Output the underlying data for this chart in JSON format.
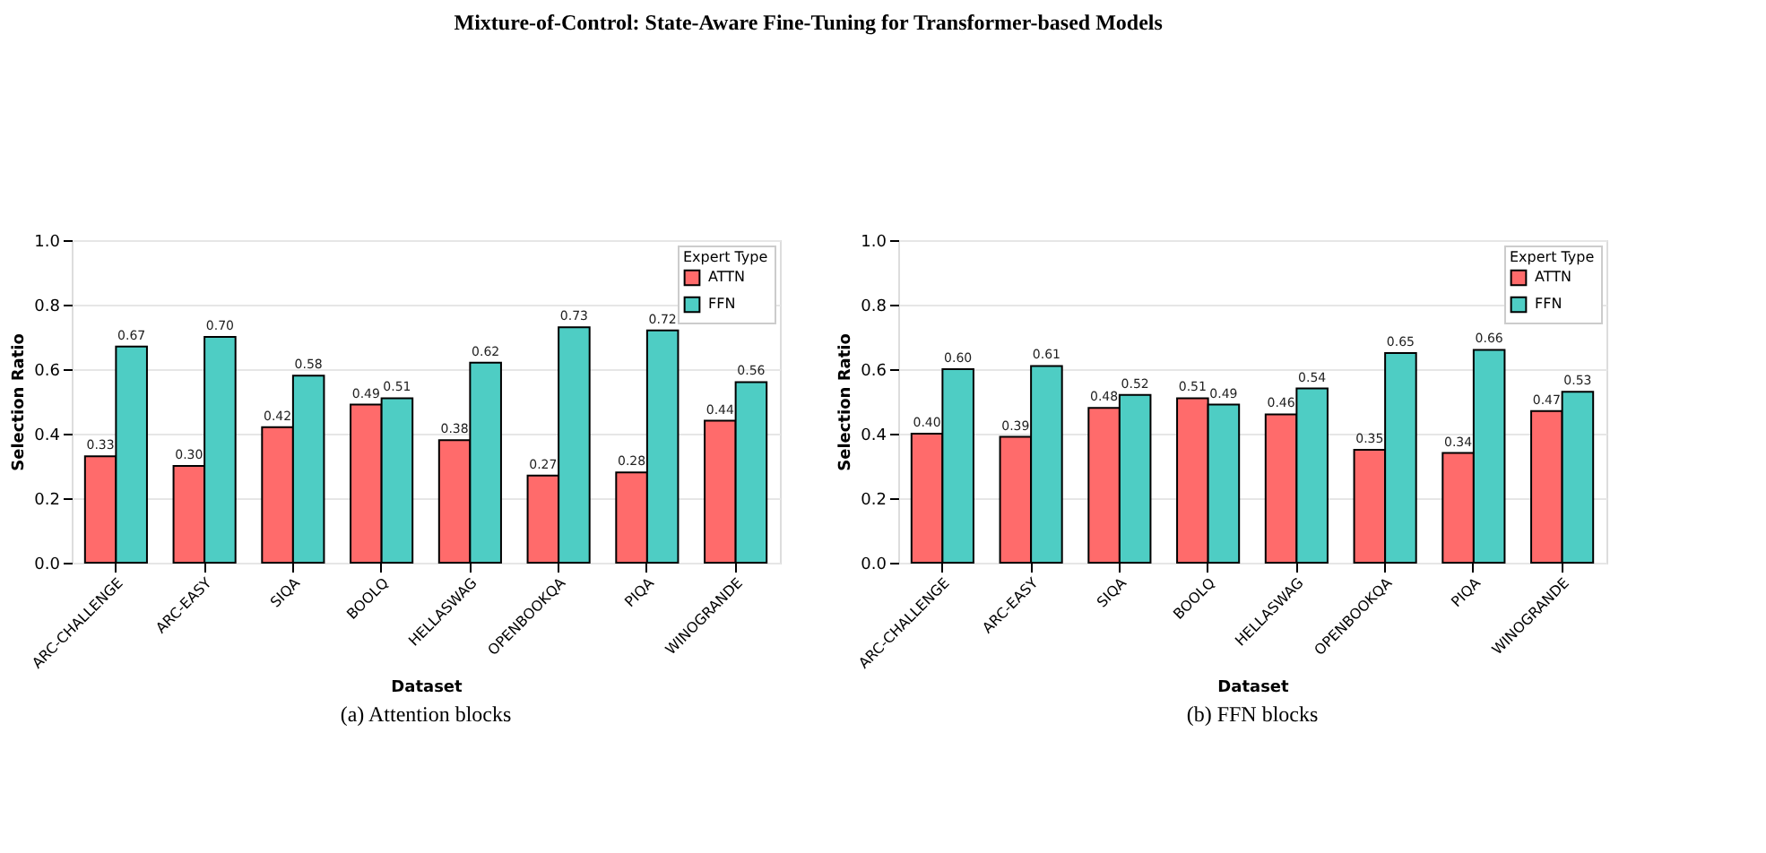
{
  "chart_data": [
    {
      "type": "bar",
      "title": "Mixture-of-Control: State-Aware Fine-Tuning for Transformer-based Models",
      "xlabel": "Dataset",
      "ylabel": "Selection Ratio",
      "legend_title": "Expert Type",
      "annotations": [
        "(a) Attention blocks"
      ],
      "categories": [
        "ARC-CHALLENGE",
        "ARC-EASY",
        "SIQA",
        "BOOLQ",
        "HELLASWAG",
        "OPENBOOKQA",
        "PIQA",
        "WINOGRANDE"
      ],
      "series": [
        {
          "name": "ATTN",
          "color": "#ff6b6b",
          "values": [
            0.33,
            0.3,
            0.42,
            0.49,
            0.38,
            0.27,
            0.28,
            0.44
          ],
          "value_labels": [
            "0.33",
            "0.30",
            "0.42",
            "0.49",
            "0.38",
            "0.27",
            "0.28",
            "0.44"
          ]
        },
        {
          "name": "FFN",
          "color": "#4ecdc4",
          "values": [
            0.67,
            0.7,
            0.58,
            0.51,
            0.62,
            0.73,
            0.72,
            0.56
          ],
          "value_labels": [
            "0.67",
            "0.70",
            "0.58",
            "0.51",
            "0.62",
            "0.73",
            "0.72",
            "0.56"
          ]
        }
      ],
      "ylim": [
        0,
        1
      ],
      "yticks": [
        {
          "value": 0,
          "label": "0.0"
        },
        {
          "value": 0.2,
          "label": "0.2"
        },
        {
          "value": 0.4,
          "label": "0.4"
        },
        {
          "value": 0.6,
          "label": "0.6"
        },
        {
          "value": 0.8,
          "label": "0.8"
        },
        {
          "value": 1,
          "label": "1.0"
        }
      ],
      "grid": "y",
      "legend": "top right"
    },
    {
      "type": "bar",
      "xlabel": "Dataset",
      "ylabel": "Selection Ratio",
      "legend_title": "Expert Type",
      "annotations": [
        "(b) FFN blocks"
      ],
      "categories": [
        "ARC-CHALLENGE",
        "ARC-EASY",
        "SIQA",
        "BOOLQ",
        "HELLASWAG",
        "OPENBOOKQA",
        "PIQA",
        "WINOGRANDE"
      ],
      "series": [
        {
          "name": "ATTN",
          "color": "#ff6b6b",
          "values": [
            0.4,
            0.39,
            0.48,
            0.51,
            0.46,
            0.35,
            0.34,
            0.47
          ],
          "value_labels": [
            "0.40",
            "0.39",
            "0.48",
            "0.51",
            "0.46",
            "0.35",
            "0.34",
            "0.47"
          ]
        },
        {
          "name": "FFN",
          "color": "#4ecdc4",
          "values": [
            0.6,
            0.61,
            0.52,
            0.49,
            0.54,
            0.65,
            0.66,
            0.53
          ],
          "value_labels": [
            "0.60",
            "0.61",
            "0.52",
            "0.49",
            "0.54",
            "0.65",
            "0.66",
            "0.53"
          ]
        }
      ],
      "ylim": [
        0,
        1
      ],
      "yticks": [
        {
          "value": 0,
          "label": "0.0"
        },
        {
          "value": 0.2,
          "label": "0.2"
        },
        {
          "value": 0.4,
          "label": "0.4"
        },
        {
          "value": 0.6,
          "label": "0.6"
        },
        {
          "value": 0.8,
          "label": "0.8"
        },
        {
          "value": 1,
          "label": "1.0"
        }
      ],
      "grid": "y",
      "legend": "top right"
    }
  ]
}
